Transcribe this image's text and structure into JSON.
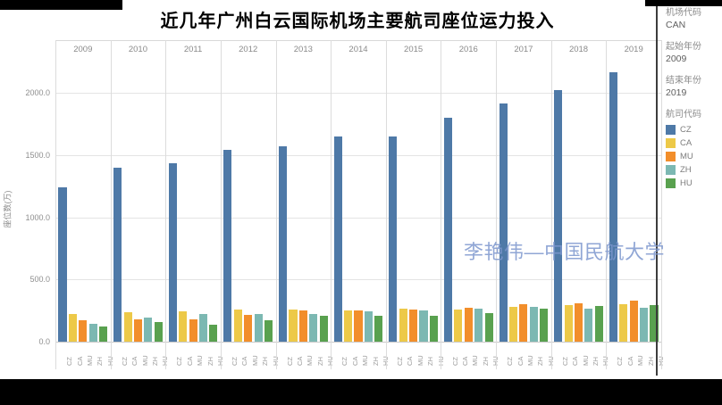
{
  "title": "近几年广州白云国际机场主要航司座位运力投入",
  "watermark": "李艳伟—中国民航大学",
  "sidebar": {
    "airport_code_label": "机场代码",
    "airport_code_value": "CAN",
    "start_year_label": "起始年份",
    "start_year_value": "2009",
    "end_year_label": "结束年份",
    "end_year_value": "2019",
    "airline_code_label": "航司代码",
    "legend": [
      {
        "code": "CZ",
        "color": "#4E79A7"
      },
      {
        "code": "CA",
        "color": "#EDC948"
      },
      {
        "code": "MU",
        "color": "#F28E2B"
      },
      {
        "code": "ZH",
        "color": "#7CB8B2"
      },
      {
        "code": "HU",
        "color": "#59A14F"
      }
    ]
  },
  "chart_data": {
    "type": "bar",
    "title": "近几年广州白云国际机场主要航司座位运力投入",
    "categories": [
      "2009",
      "2010",
      "2011",
      "2012",
      "2013",
      "2014",
      "2015",
      "2016",
      "2017",
      "2018",
      "2019"
    ],
    "series": [
      {
        "name": "CZ",
        "color": "#4E79A7",
        "values": [
          1240,
          1395,
          1435,
          1545,
          1570,
          1650,
          1650,
          1800,
          1915,
          2020,
          2165
        ]
      },
      {
        "name": "CA",
        "color": "#EDC948",
        "values": [
          220,
          235,
          245,
          255,
          260,
          250,
          265,
          260,
          280,
          295,
          300
        ]
      },
      {
        "name": "MU",
        "color": "#F28E2B",
        "values": [
          175,
          180,
          180,
          215,
          250,
          250,
          260,
          270,
          305,
          310,
          330
        ]
      },
      {
        "name": "ZH",
        "color": "#7CB8B2",
        "values": [
          145,
          195,
          225,
          225,
          225,
          245,
          250,
          265,
          280,
          268,
          273
        ]
      },
      {
        "name": "HU",
        "color": "#59A14F",
        "values": [
          125,
          160,
          140,
          170,
          210,
          205,
          205,
          230,
          268,
          285,
          297
        ]
      }
    ],
    "xlabel": "",
    "ylabel": "座位数(万)",
    "ylim": [
      0,
      2300
    ],
    "yticks": [
      0,
      500,
      1000,
      1500,
      2000
    ],
    "ytick_labels": [
      "0.0",
      "500.0",
      "1000.0",
      "1500.0",
      "2000.0"
    ],
    "grid": true,
    "legend_position": "right-panel"
  }
}
